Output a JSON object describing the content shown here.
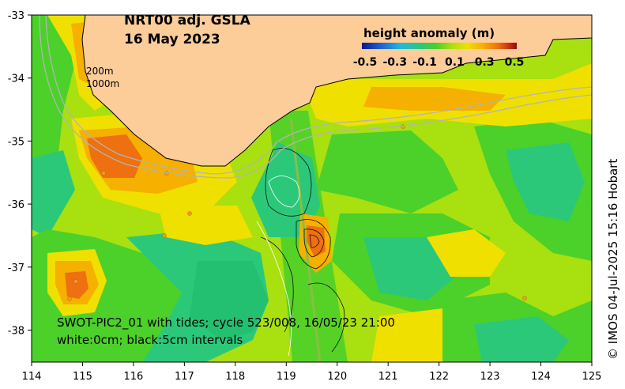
{
  "title_line1": "NRT00 adj. GSLA",
  "title_line2": "16 May 2023",
  "colorbar": {
    "title": "height anomaly (m)",
    "ticks": [
      "-0.5",
      "-0.3",
      "-0.1",
      "0.1",
      "0.3",
      "0.5"
    ],
    "colors": [
      "#0b1a8c",
      "#1f5fd0",
      "#22b8e0",
      "#2bc87a",
      "#4cd02a",
      "#a8e010",
      "#f0e000",
      "#f5b000",
      "#ee7010",
      "#c83010",
      "#8a0a0a"
    ]
  },
  "isobaths": {
    "line1": "200m",
    "line2": "1000m"
  },
  "swot_note": {
    "line1": "SWOT-PIC2_01 with tides; cycle 523/008, 16/05/23 21:00",
    "line2": "white:0cm; black:5cm intervals"
  },
  "credit": "© IMOS 04-Jul-2025 15:16 Hobart",
  "axes": {
    "x_ticks": [
      "114",
      "115",
      "116",
      "117",
      "118",
      "119",
      "120",
      "121",
      "122",
      "123",
      "124",
      "125"
    ],
    "y_ticks": [
      "-33",
      "-34",
      "-35",
      "-36",
      "-37",
      "-38"
    ]
  },
  "colors": {
    "land": "#fccc99",
    "coast": "#000000",
    "isobath": "#b4b4b4"
  }
}
